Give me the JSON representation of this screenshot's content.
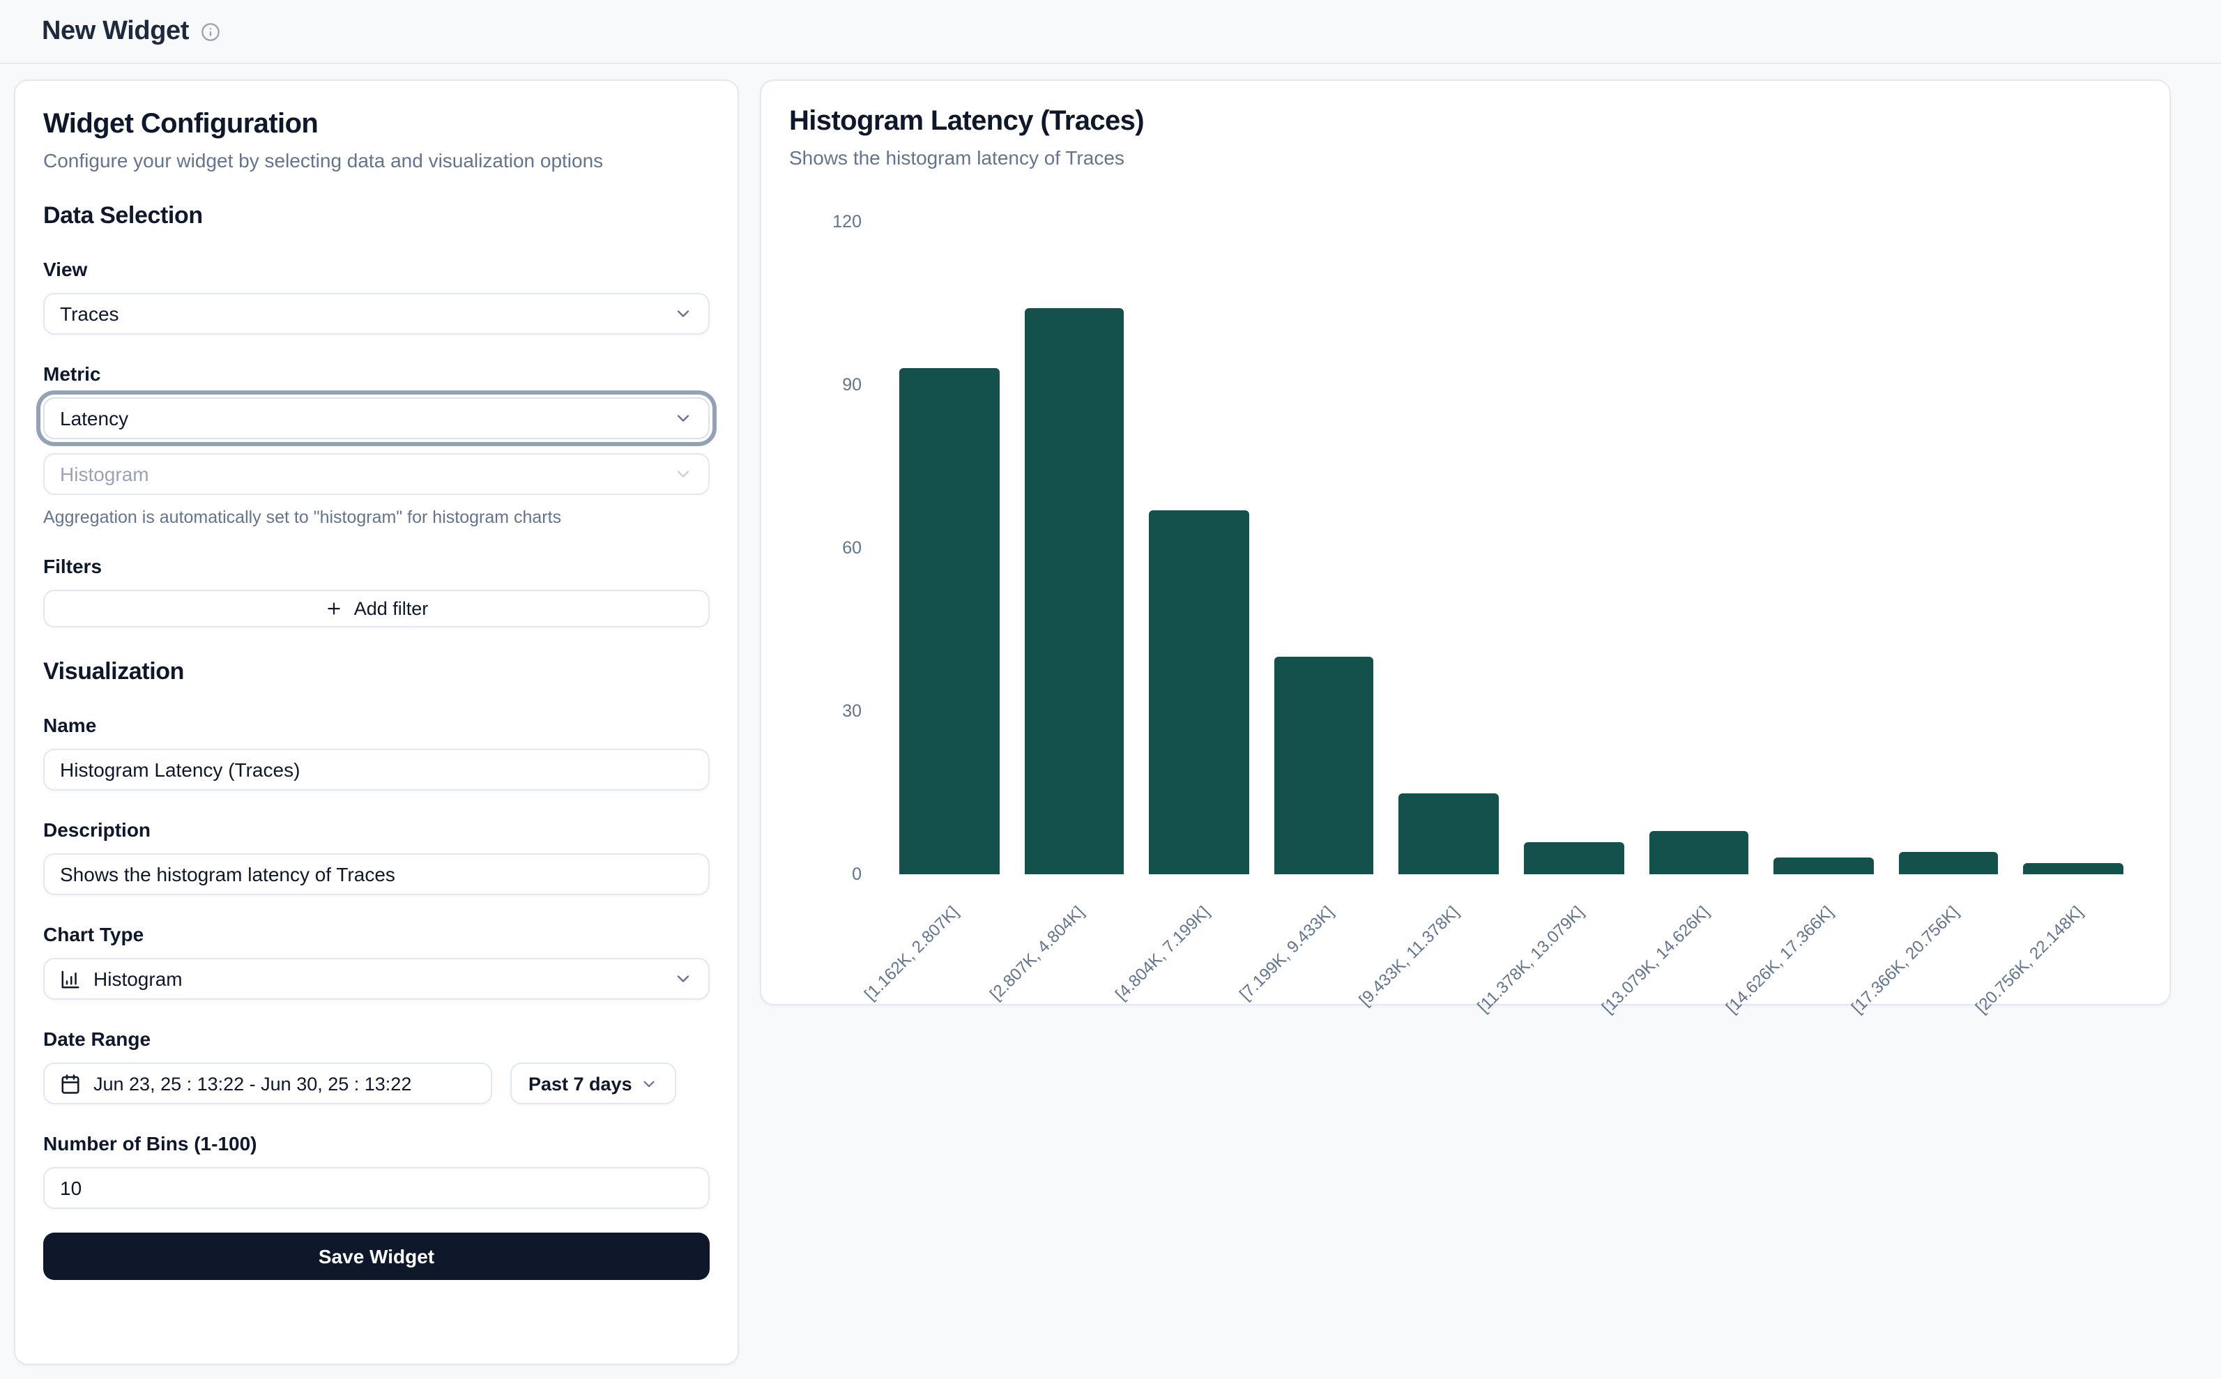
{
  "header": {
    "title": "New Widget"
  },
  "config": {
    "title": "Widget Configuration",
    "subtitle": "Configure your widget by selecting data and visualization options",
    "data_selection": {
      "heading": "Data Selection",
      "view_label": "View",
      "view_value": "Traces",
      "metric_label": "Metric",
      "metric_value": "Latency",
      "aggregation_value": "Histogram",
      "aggregation_note": "Aggregation is automatically set to \"histogram\" for histogram charts",
      "filters_label": "Filters",
      "add_filter_label": "Add filter"
    },
    "visualization": {
      "heading": "Visualization",
      "name_label": "Name",
      "name_value": "Histogram Latency (Traces)",
      "description_label": "Description",
      "description_value": "Shows the histogram latency of Traces",
      "chart_type_label": "Chart Type",
      "chart_type_value": "Histogram",
      "date_range_label": "Date Range",
      "date_range_value": "Jun 23, 25 : 13:22 - Jun 30, 25 : 13:22",
      "date_preset_value": "Past 7 days",
      "bins_label": "Number of Bins (1-100)",
      "bins_value": "10",
      "save_label": "Save Widget"
    }
  },
  "preview": {
    "title": "Histogram Latency (Traces)",
    "subtitle": "Shows the histogram latency of Traces"
  },
  "chart_data": {
    "type": "bar",
    "title": "Histogram Latency (Traces)",
    "categories": [
      "[1.162K, 2.807K]",
      "[2.807K, 4.804K]",
      "[4.804K, 7.199K]",
      "[7.199K, 9.433K]",
      "[9.433K, 11.378K]",
      "[11.378K, 13.079K]",
      "[13.079K, 14.626K]",
      "[14.626K, 17.366K]",
      "[17.366K, 20.756K]",
      "[20.756K, 22.148K]"
    ],
    "values": [
      93,
      104,
      67,
      40,
      15,
      6,
      8,
      3,
      4,
      2
    ],
    "xlabel": "",
    "ylabel": "",
    "ylim": [
      0,
      120
    ],
    "yticks": [
      0,
      30,
      60,
      90,
      120
    ],
    "grid": false,
    "legend": false,
    "bar_color": "#14514c"
  },
  "colors": {
    "bar": "#14514c",
    "save_button_bg": "#0f172a",
    "page_bg": "#f8f9fb"
  }
}
